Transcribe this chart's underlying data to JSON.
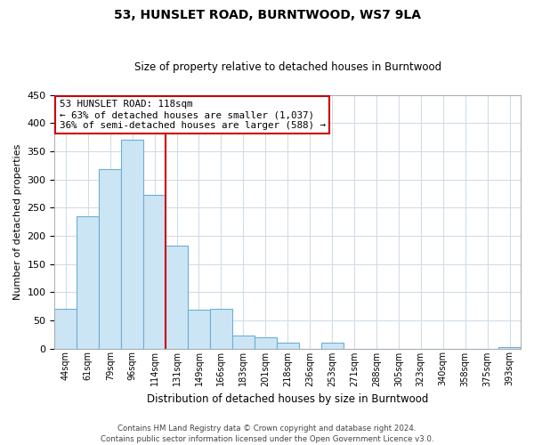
{
  "title": "53, HUNSLET ROAD, BURNTWOOD, WS7 9LA",
  "subtitle": "Size of property relative to detached houses in Burntwood",
  "xlabel": "Distribution of detached houses by size in Burntwood",
  "ylabel": "Number of detached properties",
  "bins": [
    "44sqm",
    "61sqm",
    "79sqm",
    "96sqm",
    "114sqm",
    "131sqm",
    "149sqm",
    "166sqm",
    "183sqm",
    "201sqm",
    "218sqm",
    "236sqm",
    "253sqm",
    "271sqm",
    "288sqm",
    "305sqm",
    "323sqm",
    "340sqm",
    "358sqm",
    "375sqm",
    "393sqm"
  ],
  "values": [
    70,
    235,
    318,
    370,
    272,
    183,
    68,
    70,
    23,
    20,
    10,
    0,
    11,
    0,
    0,
    0,
    0,
    0,
    0,
    0,
    2
  ],
  "bar_color": "#cce5f5",
  "bar_edge_color": "#6aafd6",
  "vline_color": "#cc0000",
  "ylim": [
    0,
    450
  ],
  "yticks": [
    0,
    50,
    100,
    150,
    200,
    250,
    300,
    350,
    400,
    450
  ],
  "annotation_title": "53 HUNSLET ROAD: 118sqm",
  "annotation_line1": "← 63% of detached houses are smaller (1,037)",
  "annotation_line2": "36% of semi-detached houses are larger (588) →",
  "footer_line1": "Contains HM Land Registry data © Crown copyright and database right 2024.",
  "footer_line2": "Contains public sector information licensed under the Open Government Licence v3.0.",
  "background_color": "#ffffff",
  "grid_color": "#d0dde8"
}
